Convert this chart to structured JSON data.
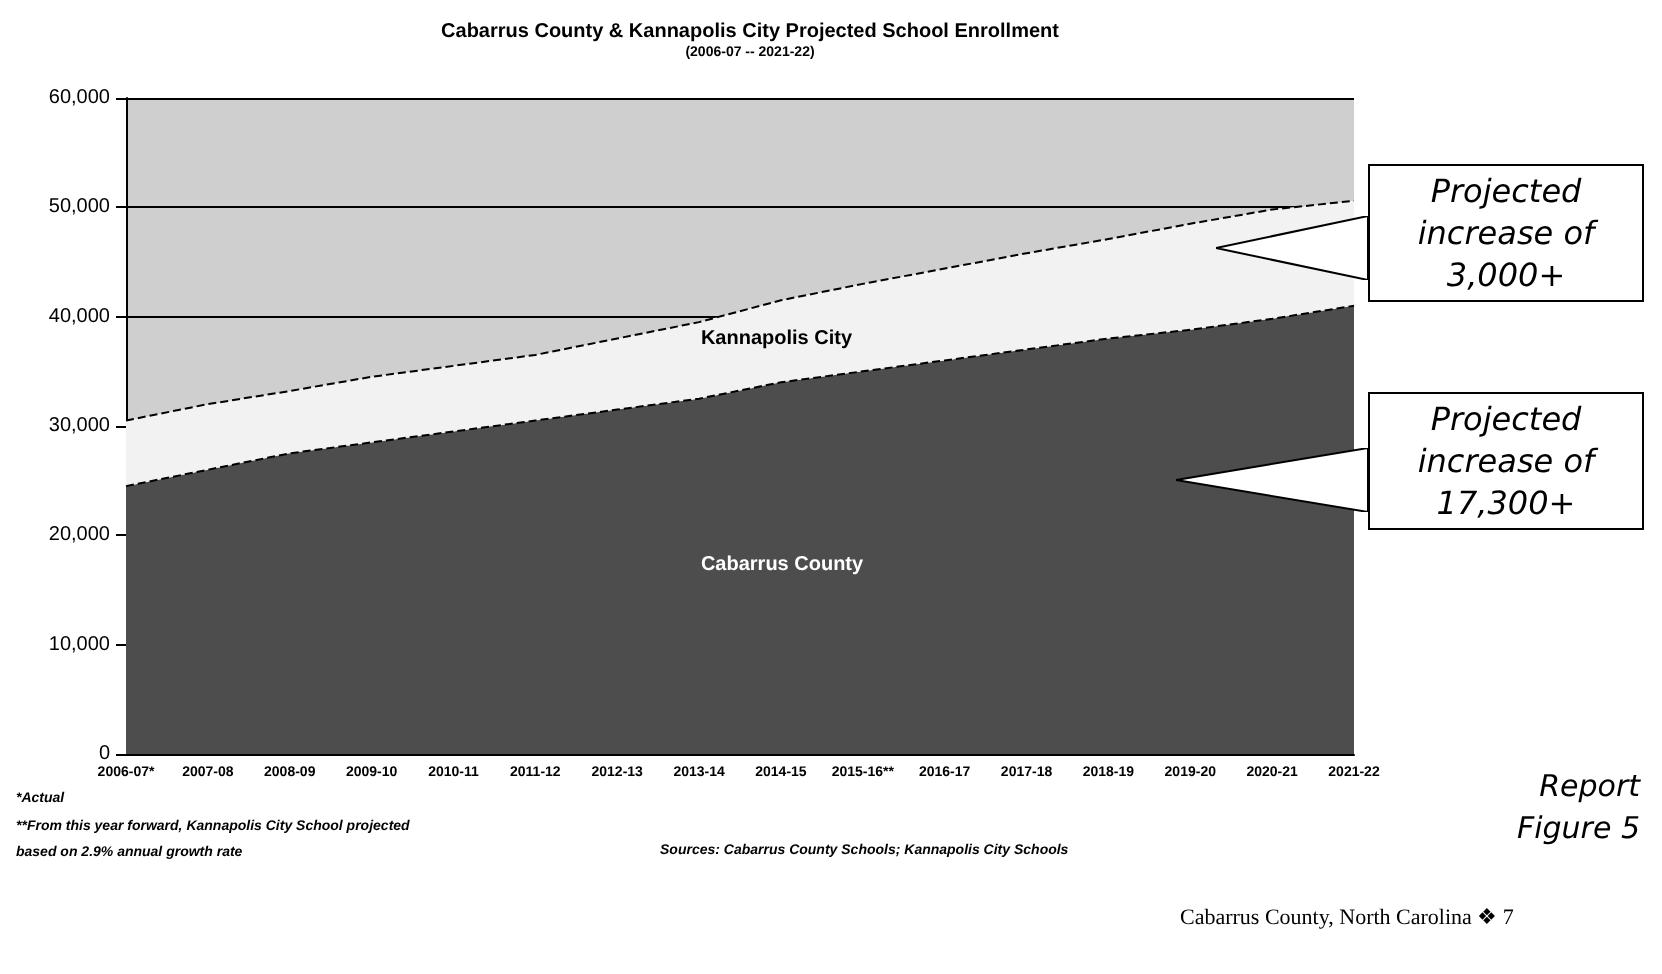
{
  "chart_data": {
    "type": "area",
    "stacked": true,
    "title": "Cabarrus County & Kannapolis City Projected School Enrollment",
    "subtitle": "(2006-07 -- 2021-22)",
    "categories": [
      "2006-07*",
      "2007-08",
      "2008-09",
      "2009-10",
      "2010-11",
      "2011-12",
      "2012-13",
      "2013-14",
      "2014-15",
      "2015-16**",
      "2016-17",
      "2017-18",
      "2018-19",
      "2019-20",
      "2020-21",
      "2021-22"
    ],
    "series": [
      {
        "name": "Cabarrus County",
        "color": "#4d4d4d",
        "values": [
          24500,
          26000,
          27500,
          28500,
          29500,
          30500,
          31500,
          32500,
          34000,
          35000,
          36000,
          37000,
          38000,
          38800,
          39800,
          41000
        ]
      },
      {
        "name": "Kannapolis City",
        "color": "#f2f2f2",
        "values": [
          6000,
          6000,
          5700,
          6000,
          6000,
          6000,
          6500,
          7000,
          7500,
          8000,
          8400,
          8800,
          9100,
          9700,
          10000,
          9600
        ]
      }
    ],
    "ylim": [
      0,
      60000
    ],
    "yticks": [
      0,
      {
        "value": 10000,
        "label": "10,000"
      },
      {
        "value": 20000,
        "label": "20,000"
      },
      {
        "value": 30000,
        "label": "30,000"
      },
      {
        "value": 40000,
        "label": "40,000"
      },
      {
        "value": 50000,
        "label": "50,000"
      },
      {
        "value": 60000,
        "label": "60,000"
      }
    ],
    "grid": "y",
    "legend": false,
    "annotations": [
      "Projected increase of 3,000+",
      "Projected increase of 17,300+",
      "Report Figure 5",
      "*Actual",
      "**From this year forward, Kannapolis City School projected based on 2.9% annual growth rate",
      "Sources: Cabarrus County Schools; Kannapolis City Schools",
      "Cabarrus County, North Carolina ❖ 7"
    ]
  }
}
